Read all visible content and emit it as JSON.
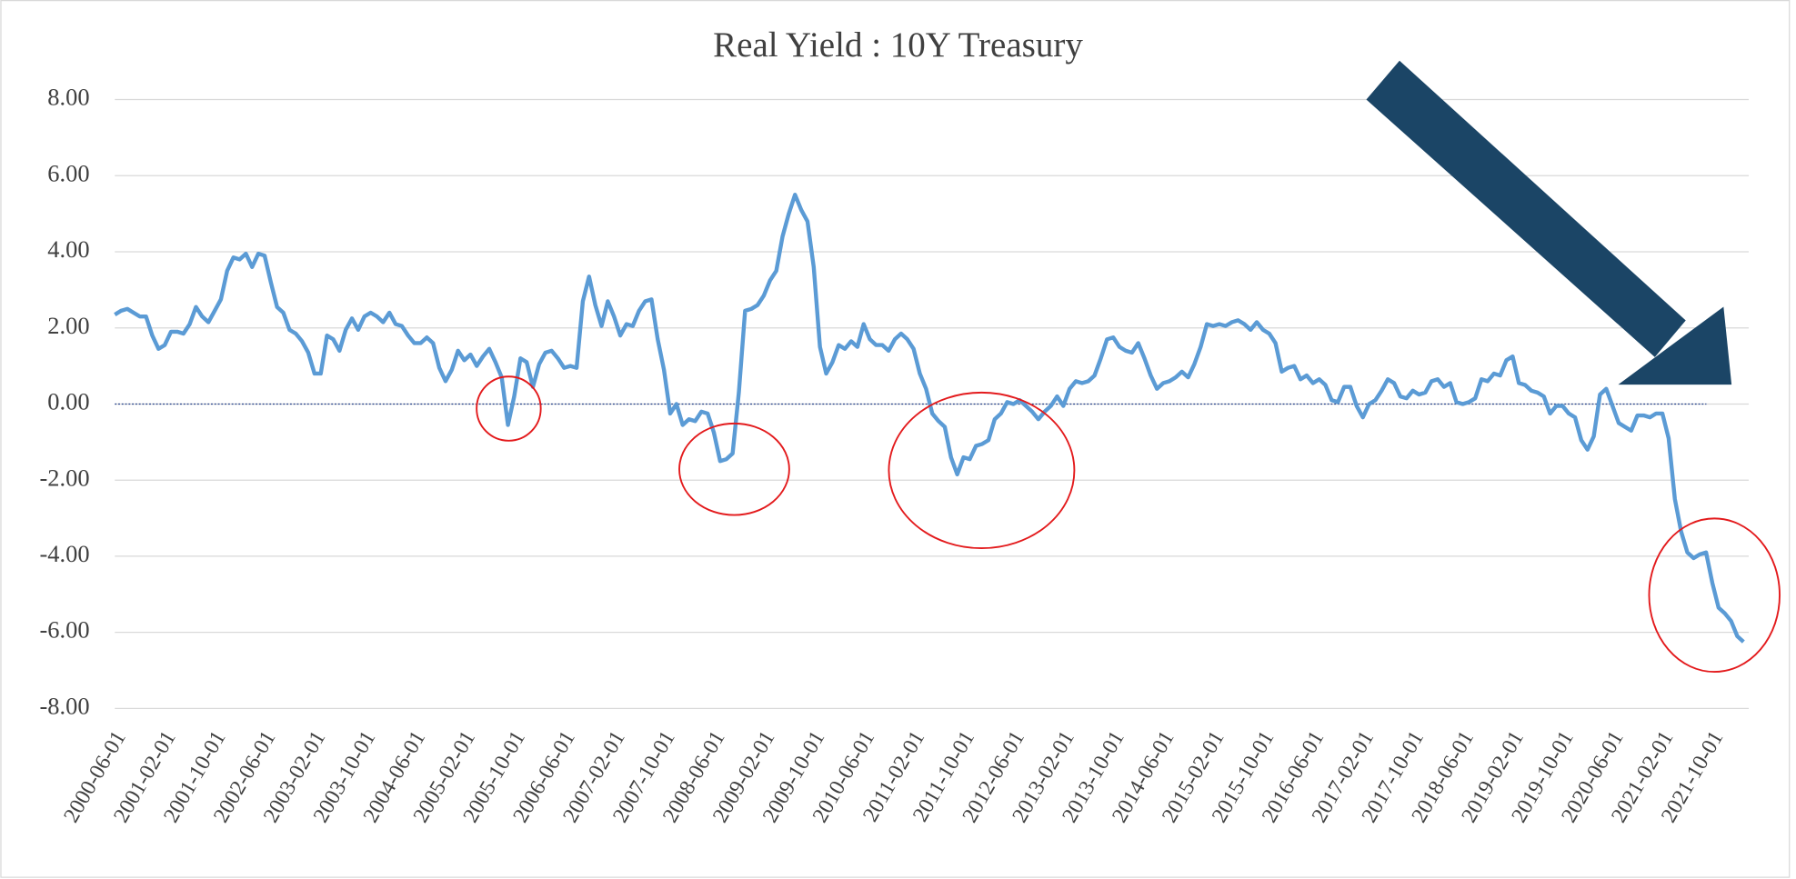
{
  "chart_data": {
    "type": "line",
    "title": "Real Yield : 10Y Treasury",
    "categories": [
      "2000-06-01",
      null,
      null,
      null,
      null,
      null,
      null,
      null,
      "2001-02-01",
      null,
      null,
      null,
      null,
      null,
      null,
      null,
      "2001-10-01",
      null,
      null,
      null,
      null,
      null,
      null,
      null,
      "2002-06-01",
      null,
      null,
      null,
      null,
      null,
      null,
      null,
      "2003-02-01",
      null,
      null,
      null,
      null,
      null,
      null,
      null,
      "2003-10-01",
      null,
      null,
      null,
      null,
      null,
      null,
      null,
      "2004-06-01",
      null,
      null,
      null,
      null,
      null,
      null,
      null,
      "2005-02-01",
      null,
      null,
      null,
      null,
      null,
      null,
      null,
      "2005-10-01",
      null,
      null,
      null,
      null,
      null,
      null,
      null,
      "2006-06-01",
      null,
      null,
      null,
      null,
      null,
      null,
      null,
      "2007-02-01",
      null,
      null,
      null,
      null,
      null,
      null,
      null,
      "2007-10-01",
      null,
      null,
      null,
      null,
      null,
      null,
      null,
      "2008-06-01",
      null,
      null,
      null,
      null,
      null,
      null,
      null,
      "2009-02-01",
      null,
      null,
      null,
      null,
      null,
      null,
      null,
      "2009-10-01",
      null,
      null,
      null,
      null,
      null,
      null,
      null,
      "2010-06-01",
      null,
      null,
      null,
      null,
      null,
      null,
      null,
      "2011-02-01",
      null,
      null,
      null,
      null,
      null,
      null,
      null,
      "2011-10-01",
      null,
      null,
      null,
      null,
      null,
      null,
      null,
      "2012-06-01",
      null,
      null,
      null,
      null,
      null,
      null,
      null,
      "2013-02-01",
      null,
      null,
      null,
      null,
      null,
      null,
      null,
      "2013-10-01",
      null,
      null,
      null,
      null,
      null,
      null,
      null,
      "2014-06-01",
      null,
      null,
      null,
      null,
      null,
      null,
      null,
      "2015-02-01",
      null,
      null,
      null,
      null,
      null,
      null,
      null,
      "2015-10-01",
      null,
      null,
      null,
      null,
      null,
      null,
      null,
      "2016-06-01",
      null,
      null,
      null,
      null,
      null,
      null,
      null,
      "2017-02-01",
      null,
      null,
      null,
      null,
      null,
      null,
      null,
      "2017-10-01",
      null,
      null,
      null,
      null,
      null,
      null,
      null,
      "2018-06-01",
      null,
      null,
      null,
      null,
      null,
      null,
      null,
      "2019-02-01",
      null,
      null,
      null,
      null,
      null,
      null,
      null,
      "2019-10-01",
      null,
      null,
      null,
      null,
      null,
      null,
      null,
      "2020-06-01",
      null,
      null,
      null,
      null,
      null,
      null,
      null,
      "2021-02-01",
      null,
      null,
      null,
      null,
      null,
      null,
      null,
      "2021-10-01",
      null,
      null,
      null,
      null,
      null
    ],
    "series": [
      {
        "color": "#5b9bd5",
        "values": [
          2.35,
          2.45,
          2.5,
          2.4,
          2.3,
          2.3,
          1.8,
          1.45,
          1.55,
          1.9,
          1.9,
          1.85,
          2.1,
          2.55,
          2.3,
          2.15,
          2.45,
          2.75,
          3.5,
          3.85,
          3.8,
          3.95,
          3.6,
          3.95,
          3.9,
          3.2,
          2.55,
          2.4,
          1.95,
          1.85,
          1.65,
          1.35,
          0.8,
          0.8,
          1.8,
          1.7,
          1.4,
          1.95,
          2.25,
          1.95,
          2.3,
          2.4,
          2.3,
          2.15,
          2.4,
          2.1,
          2.05,
          1.8,
          1.6,
          1.6,
          1.75,
          1.6,
          0.95,
          0.6,
          0.9,
          1.4,
          1.15,
          1.3,
          1.0,
          1.25,
          1.45,
          1.1,
          0.7,
          -0.55,
          0.2,
          1.2,
          1.1,
          0.45,
          1.05,
          1.35,
          1.4,
          1.2,
          0.95,
          1.0,
          0.95,
          2.7,
          3.35,
          2.6,
          2.05,
          2.7,
          2.3,
          1.8,
          2.1,
          2.05,
          2.45,
          2.7,
          2.75,
          1.7,
          0.9,
          -0.25,
          0.0,
          -0.55,
          -0.4,
          -0.45,
          -0.2,
          -0.25,
          -0.75,
          -1.5,
          -1.45,
          -1.3,
          0.3,
          2.45,
          2.5,
          2.6,
          2.85,
          3.25,
          3.5,
          4.4,
          5.0,
          5.5,
          5.1,
          4.8,
          3.6,
          1.5,
          0.8,
          1.1,
          1.55,
          1.45,
          1.65,
          1.5,
          2.1,
          1.7,
          1.55,
          1.55,
          1.4,
          1.7,
          1.85,
          1.7,
          1.45,
          0.8,
          0.4,
          -0.25,
          -0.45,
          -0.6,
          -1.4,
          -1.85,
          -1.4,
          -1.45,
          -1.1,
          -1.05,
          -0.95,
          -0.4,
          -0.25,
          0.05,
          0.0,
          0.1,
          -0.05,
          -0.2,
          -0.4,
          -0.2,
          -0.05,
          0.2,
          -0.05,
          0.4,
          0.6,
          0.55,
          0.6,
          0.75,
          1.2,
          1.7,
          1.75,
          1.5,
          1.4,
          1.35,
          1.6,
          1.2,
          0.75,
          0.4,
          0.55,
          0.6,
          0.7,
          0.85,
          0.7,
          1.05,
          1.5,
          2.1,
          2.05,
          2.1,
          2.05,
          2.15,
          2.2,
          2.1,
          1.95,
          2.15,
          1.95,
          1.85,
          1.6,
          0.85,
          0.95,
          1.0,
          0.65,
          0.75,
          0.55,
          0.65,
          0.5,
          0.1,
          0.05,
          0.45,
          0.45,
          -0.05,
          -0.35,
          0.0,
          0.1,
          0.35,
          0.65,
          0.55,
          0.2,
          0.15,
          0.35,
          0.25,
          0.3,
          0.6,
          0.65,
          0.45,
          0.55,
          0.05,
          0.0,
          0.05,
          0.15,
          0.65,
          0.6,
          0.8,
          0.75,
          1.15,
          1.25,
          0.55,
          0.5,
          0.35,
          0.3,
          0.2,
          -0.25,
          -0.05,
          -0.05,
          -0.25,
          -0.35,
          -0.95,
          -1.2,
          -0.85,
          0.25,
          0.4,
          -0.05,
          -0.5,
          -0.6,
          -0.7,
          -0.3,
          -0.3,
          -0.35,
          -0.25,
          -0.25,
          -0.9,
          -2.5,
          -3.35,
          -3.9,
          -4.05,
          -3.95,
          -3.9,
          -4.7,
          -5.35,
          -5.5,
          -5.7,
          -6.1,
          -6.25
        ]
      }
    ],
    "ylim": [
      -8,
      8
    ],
    "yticks": [
      {
        "value": -8,
        "label": "-8.00"
      },
      {
        "value": -6,
        "label": "-6.00"
      },
      {
        "value": -4,
        "label": "-4.00"
      },
      {
        "value": -2,
        "label": "-2.00"
      },
      {
        "value": 0,
        "label": "0.00"
      },
      {
        "value": 2,
        "label": "2.00"
      },
      {
        "value": 4,
        "label": "4.00"
      },
      {
        "value": 6,
        "label": "6.00"
      },
      {
        "value": 8,
        "label": "8.00"
      }
    ],
    "grid": true
  }
}
